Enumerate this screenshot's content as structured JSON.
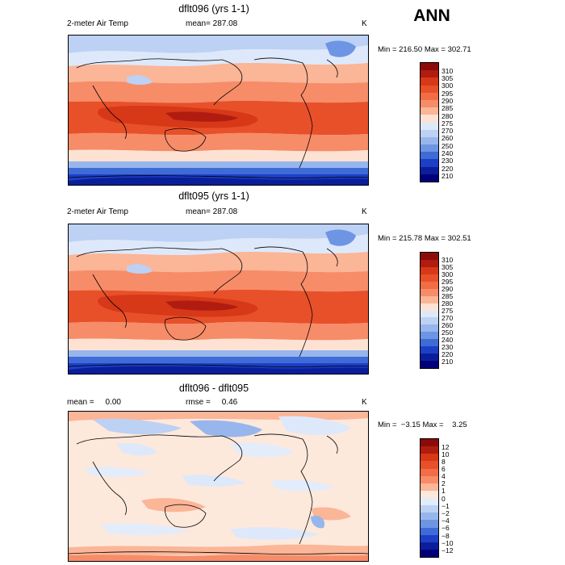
{
  "season": "ANN",
  "panels": [
    {
      "title": "dflt096 (yrs 1-1)",
      "left_label": "2-meter Air Temp",
      "mid_label": "mean= 287.08",
      "units": "K",
      "minmax": "Min = 216.50 Max = 302.71",
      "levels": [
        "310",
        "305",
        "300",
        "295",
        "290",
        "285",
        "280",
        "275",
        "270",
        "260",
        "250",
        "240",
        "230",
        "220",
        "210"
      ],
      "colors": [
        "#8b0a0a",
        "#b01c10",
        "#d63818",
        "#e8502a",
        "#f26c45",
        "#f78c68",
        "#fbb597",
        "#fde2d4",
        "#dde9fb",
        "#bcd1f4",
        "#97b6ec",
        "#6d95e3",
        "#3f6bd7",
        "#1d3fc6",
        "#0a1e9c",
        "#00007a"
      ],
      "mean_value": 287.08,
      "min_value": 216.5,
      "max_value": 302.71
    },
    {
      "title": "dflt095 (yrs 1-1)",
      "left_label": "2-meter Air Temp",
      "mid_label": "mean= 287.08",
      "units": "K",
      "minmax": "Min = 215.78 Max = 302.51",
      "levels": [
        "310",
        "305",
        "300",
        "295",
        "290",
        "285",
        "280",
        "275",
        "270",
        "260",
        "250",
        "240",
        "230",
        "220",
        "210"
      ],
      "colors": [
        "#8b0a0a",
        "#b01c10",
        "#d63818",
        "#e8502a",
        "#f26c45",
        "#f78c68",
        "#fbb597",
        "#fde2d4",
        "#dde9fb",
        "#bcd1f4",
        "#97b6ec",
        "#6d95e3",
        "#3f6bd7",
        "#1d3fc6",
        "#0a1e9c",
        "#00007a"
      ],
      "mean_value": 287.08,
      "min_value": 215.78,
      "max_value": 302.51
    },
    {
      "title": "dflt096 - dflt095",
      "left_label": "mean =     0.00",
      "mid_label": "rmse =     0.46",
      "units": "K",
      "minmax": "Min =  −3.15 Max =    3.25",
      "levels": [
        "12",
        "10",
        "8",
        "6",
        "4",
        "2",
        "1",
        "0",
        "−1",
        "−2",
        "−4",
        "−6",
        "−8",
        "−10",
        "−12"
      ],
      "colors": [
        "#8b0a0a",
        "#b01c10",
        "#d63818",
        "#e8502a",
        "#f26c45",
        "#f78c68",
        "#fbb597",
        "#fde8dc",
        "#e3ecfb",
        "#bcd1f4",
        "#97b6ec",
        "#6d95e3",
        "#3f6bd7",
        "#1d3fc6",
        "#0a1e9c",
        "#00007a"
      ],
      "mean_value": 0.0,
      "rmse_value": 0.46,
      "min_value": -3.15,
      "max_value": 3.25
    }
  ]
}
